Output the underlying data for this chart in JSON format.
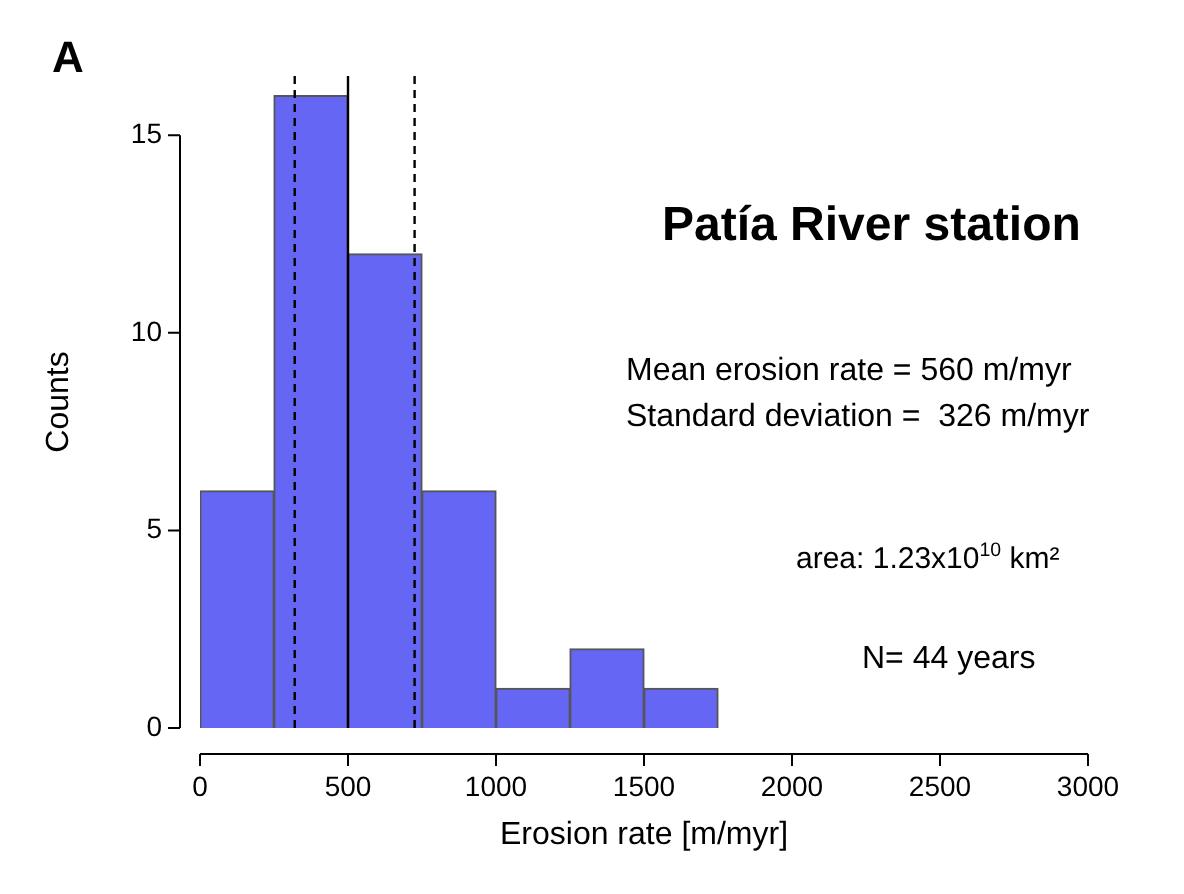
{
  "chart_data": {
    "type": "histogram",
    "title": "Patía River station",
    "xlabel": "Erosion rate [m/myr]",
    "ylabel": "Counts",
    "bins": [
      0,
      250,
      500,
      750,
      1000,
      1250,
      1500,
      1750
    ],
    "values": [
      6,
      16,
      12,
      6,
      1,
      2,
      1
    ],
    "color": "#6666f5",
    "xlim": [
      0,
      3000
    ],
    "xticks": [
      0,
      500,
      1000,
      1500,
      2000,
      2500,
      3000
    ],
    "ylim": [
      0,
      16.5
    ],
    "yticks": [
      0,
      5,
      10,
      15
    ],
    "grid": false,
    "legend": false,
    "ref_lines": [
      {
        "axis": "x",
        "value": 500,
        "line_style": "solid",
        "color": "#000000"
      },
      {
        "axis": "x",
        "value": 320,
        "line_style": "dashed",
        "color": "#000000"
      },
      {
        "axis": "x",
        "value": 725,
        "line_style": "dashed",
        "color": "#000000"
      }
    ],
    "annotations": [
      "A",
      "Mean erosion rate = 560 m/myr",
      "Standard deviation =  326 m/myr",
      "area: 1.23x10$^{10}$ km²",
      "N= 44 years"
    ]
  }
}
